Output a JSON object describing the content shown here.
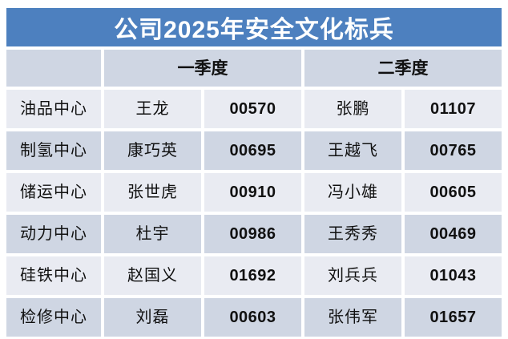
{
  "page": {
    "title": "公司2025年安全文化标兵"
  },
  "colors": {
    "banner_blue": "#4d80bf",
    "band_dark": "#cfd6e3",
    "band_light": "#e9ebf2",
    "title_text": "#ffffff",
    "cell_text": "#111111",
    "background": "#ffffff"
  },
  "table": {
    "corner_label": "",
    "quarter_headers": {
      "q1": "一季度",
      "q2": "二季度"
    },
    "rows": [
      {
        "center": "油品中心",
        "q1_name": "王龙",
        "q1_id": "00570",
        "q2_name": "张鹏",
        "q2_id": "01107"
      },
      {
        "center": "制氢中心",
        "q1_name": "康巧英",
        "q1_id": "00695",
        "q2_name": "王越飞",
        "q2_id": "00765"
      },
      {
        "center": "储运中心",
        "q1_name": "张世虎",
        "q1_id": "00910",
        "q2_name": "冯小雄",
        "q2_id": "00605"
      },
      {
        "center": "动力中心",
        "q1_name": "杜宇",
        "q1_id": "00986",
        "q2_name": "王秀秀",
        "q2_id": "00469"
      },
      {
        "center": "硅铁中心",
        "q1_name": "赵国义",
        "q1_id": "01692",
        "q2_name": "刘兵兵",
        "q2_id": "01043"
      },
      {
        "center": "检修中心",
        "q1_name": "刘磊",
        "q1_id": "00603",
        "q2_name": "张伟军",
        "q2_id": "01657"
      }
    ]
  }
}
